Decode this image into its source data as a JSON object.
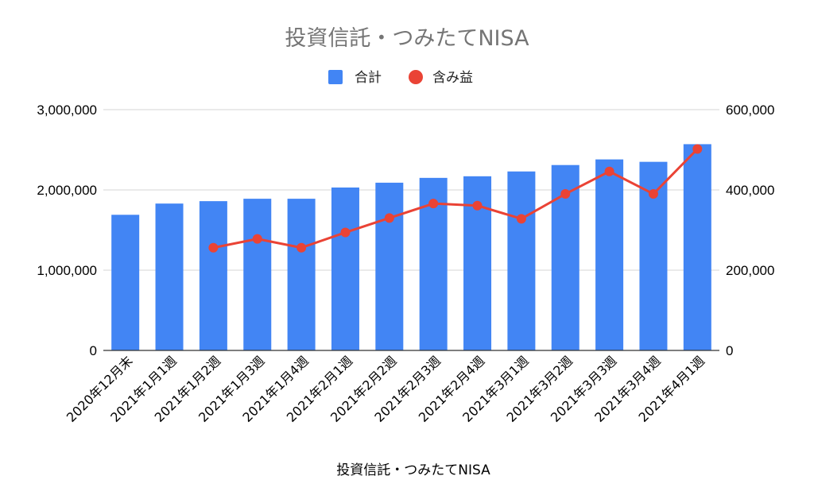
{
  "chart_data": {
    "type": "bar",
    "title": "投資信託・つみたてNISA",
    "xlabel": "投資信託・つみたてNISA",
    "categories": [
      "2020年12月末",
      "2021年1月1週",
      "2021年1月2週",
      "2021年1月3週",
      "2021年1月4週",
      "2021年2月1週",
      "2021年2月2週",
      "2021年2月3週",
      "2021年2月4週",
      "2021年3月1週",
      "2021年3月2週",
      "2021年3月3週",
      "2021年3月4週",
      "2021年4月1週"
    ],
    "series": [
      {
        "name": "合計",
        "type": "bar",
        "axis": "left",
        "color": "#4285F4",
        "values": [
          1690000,
          1830000,
          1860000,
          1890000,
          1890000,
          2030000,
          2090000,
          2150000,
          2170000,
          2230000,
          2310000,
          2380000,
          2350000,
          2570000
        ]
      },
      {
        "name": "含み益",
        "type": "line",
        "axis": "right",
        "color": "#EA4335",
        "values": [
          null,
          null,
          256000,
          278000,
          256000,
          294000,
          330000,
          366000,
          361000,
          328000,
          390000,
          446000,
          390000,
          502000
        ]
      }
    ],
    "ylim": [
      0,
      3000000
    ],
    "y2lim": [
      0,
      600000
    ],
    "yticks": [
      "0",
      "1,000,000",
      "2,000,000",
      "3,000,000"
    ],
    "y2ticks": [
      "0",
      "200,000",
      "400,000",
      "600,000"
    ],
    "legend": "top-center",
    "grid": true
  }
}
